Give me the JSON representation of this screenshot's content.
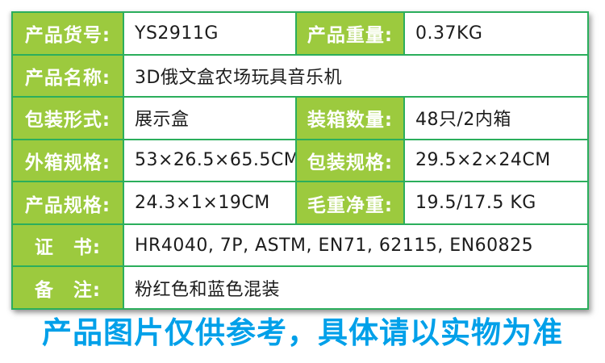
{
  "colors": {
    "label_background": "#9cca3e",
    "grid_border": "#2bae5c",
    "value_text": "#1c1c1c",
    "footer_blue": "#00a0e9"
  },
  "table": {
    "row1": {
      "label1": "产品货号:",
      "value1": "YS2911G",
      "label2": "产品重量:",
      "value2": "0.37KG"
    },
    "row2": {
      "label": "产品名称:",
      "value": "3D俄文盒农场玩具音乐机"
    },
    "row3": {
      "label1": "包装形式:",
      "value1": "展示盒",
      "label2": "装箱数量:",
      "value2": "48只/2内箱"
    },
    "row4": {
      "label1": "外箱规格:",
      "value1": "53×26.5×65.5CM",
      "label2": "包装规格:",
      "value2": "29.5×2×24CM"
    },
    "row5": {
      "label1": "产品规格:",
      "value1": "24.3×1×19CM",
      "label2": "毛重净重:",
      "value2": "19.5/17.5 KG"
    },
    "row6": {
      "label": "证　书:",
      "value": "HR4040, 7P, ASTM, EN71, 62115, EN60825"
    },
    "row7": {
      "label": "备　注:",
      "value": "粉红色和蓝色混装"
    }
  },
  "footer": {
    "note": "产品图片仅供参考，具体请以实物为准"
  }
}
